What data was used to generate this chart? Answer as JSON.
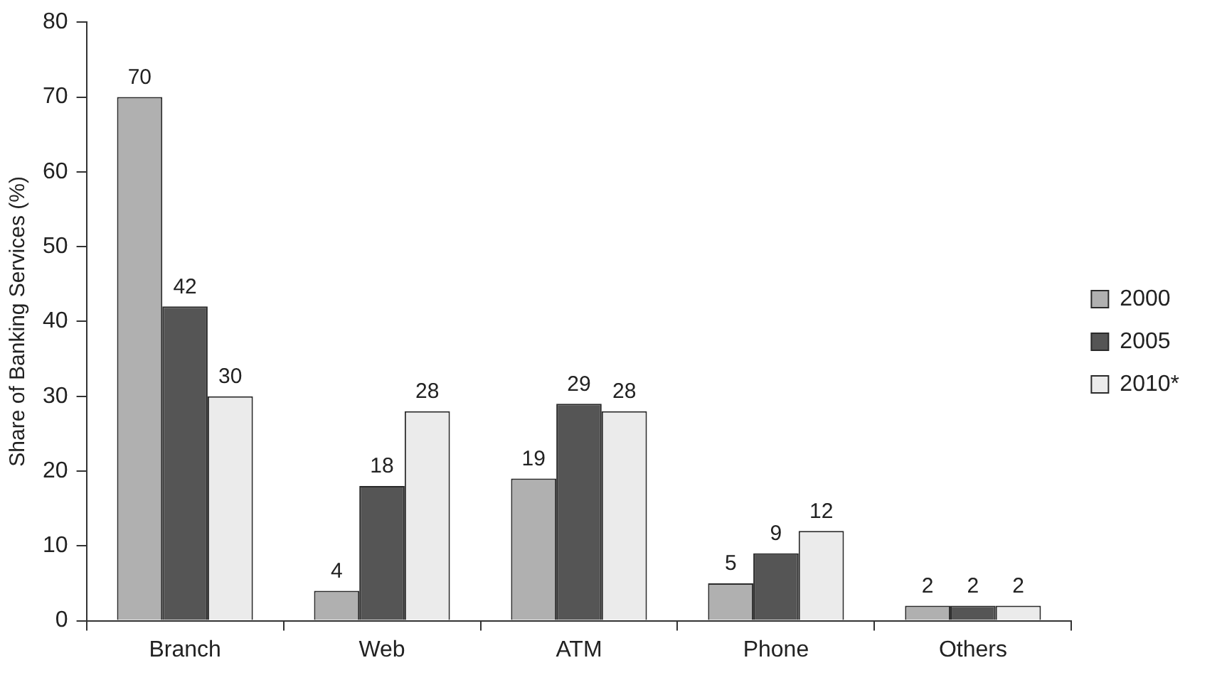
{
  "chart_data": {
    "type": "bar",
    "ylabel": "Share of Banking Services (%)",
    "categories": [
      "Branch",
      "Web",
      "ATM",
      "Phone",
      "Others"
    ],
    "series": [
      {
        "name": "2000",
        "color": "#b0b0b0",
        "values": [
          70,
          4,
          19,
          5,
          2
        ]
      },
      {
        "name": "2005",
        "color": "#555555",
        "values": [
          42,
          18,
          29,
          9,
          2
        ]
      },
      {
        "name": "2010*",
        "color": "#ebebeb",
        "values": [
          30,
          28,
          28,
          12,
          2
        ]
      }
    ],
    "ylim": [
      0,
      80
    ],
    "yticks": [
      0,
      10,
      20,
      30,
      40,
      50,
      60,
      70,
      80
    ],
    "data_labels": true,
    "legend": "right"
  }
}
